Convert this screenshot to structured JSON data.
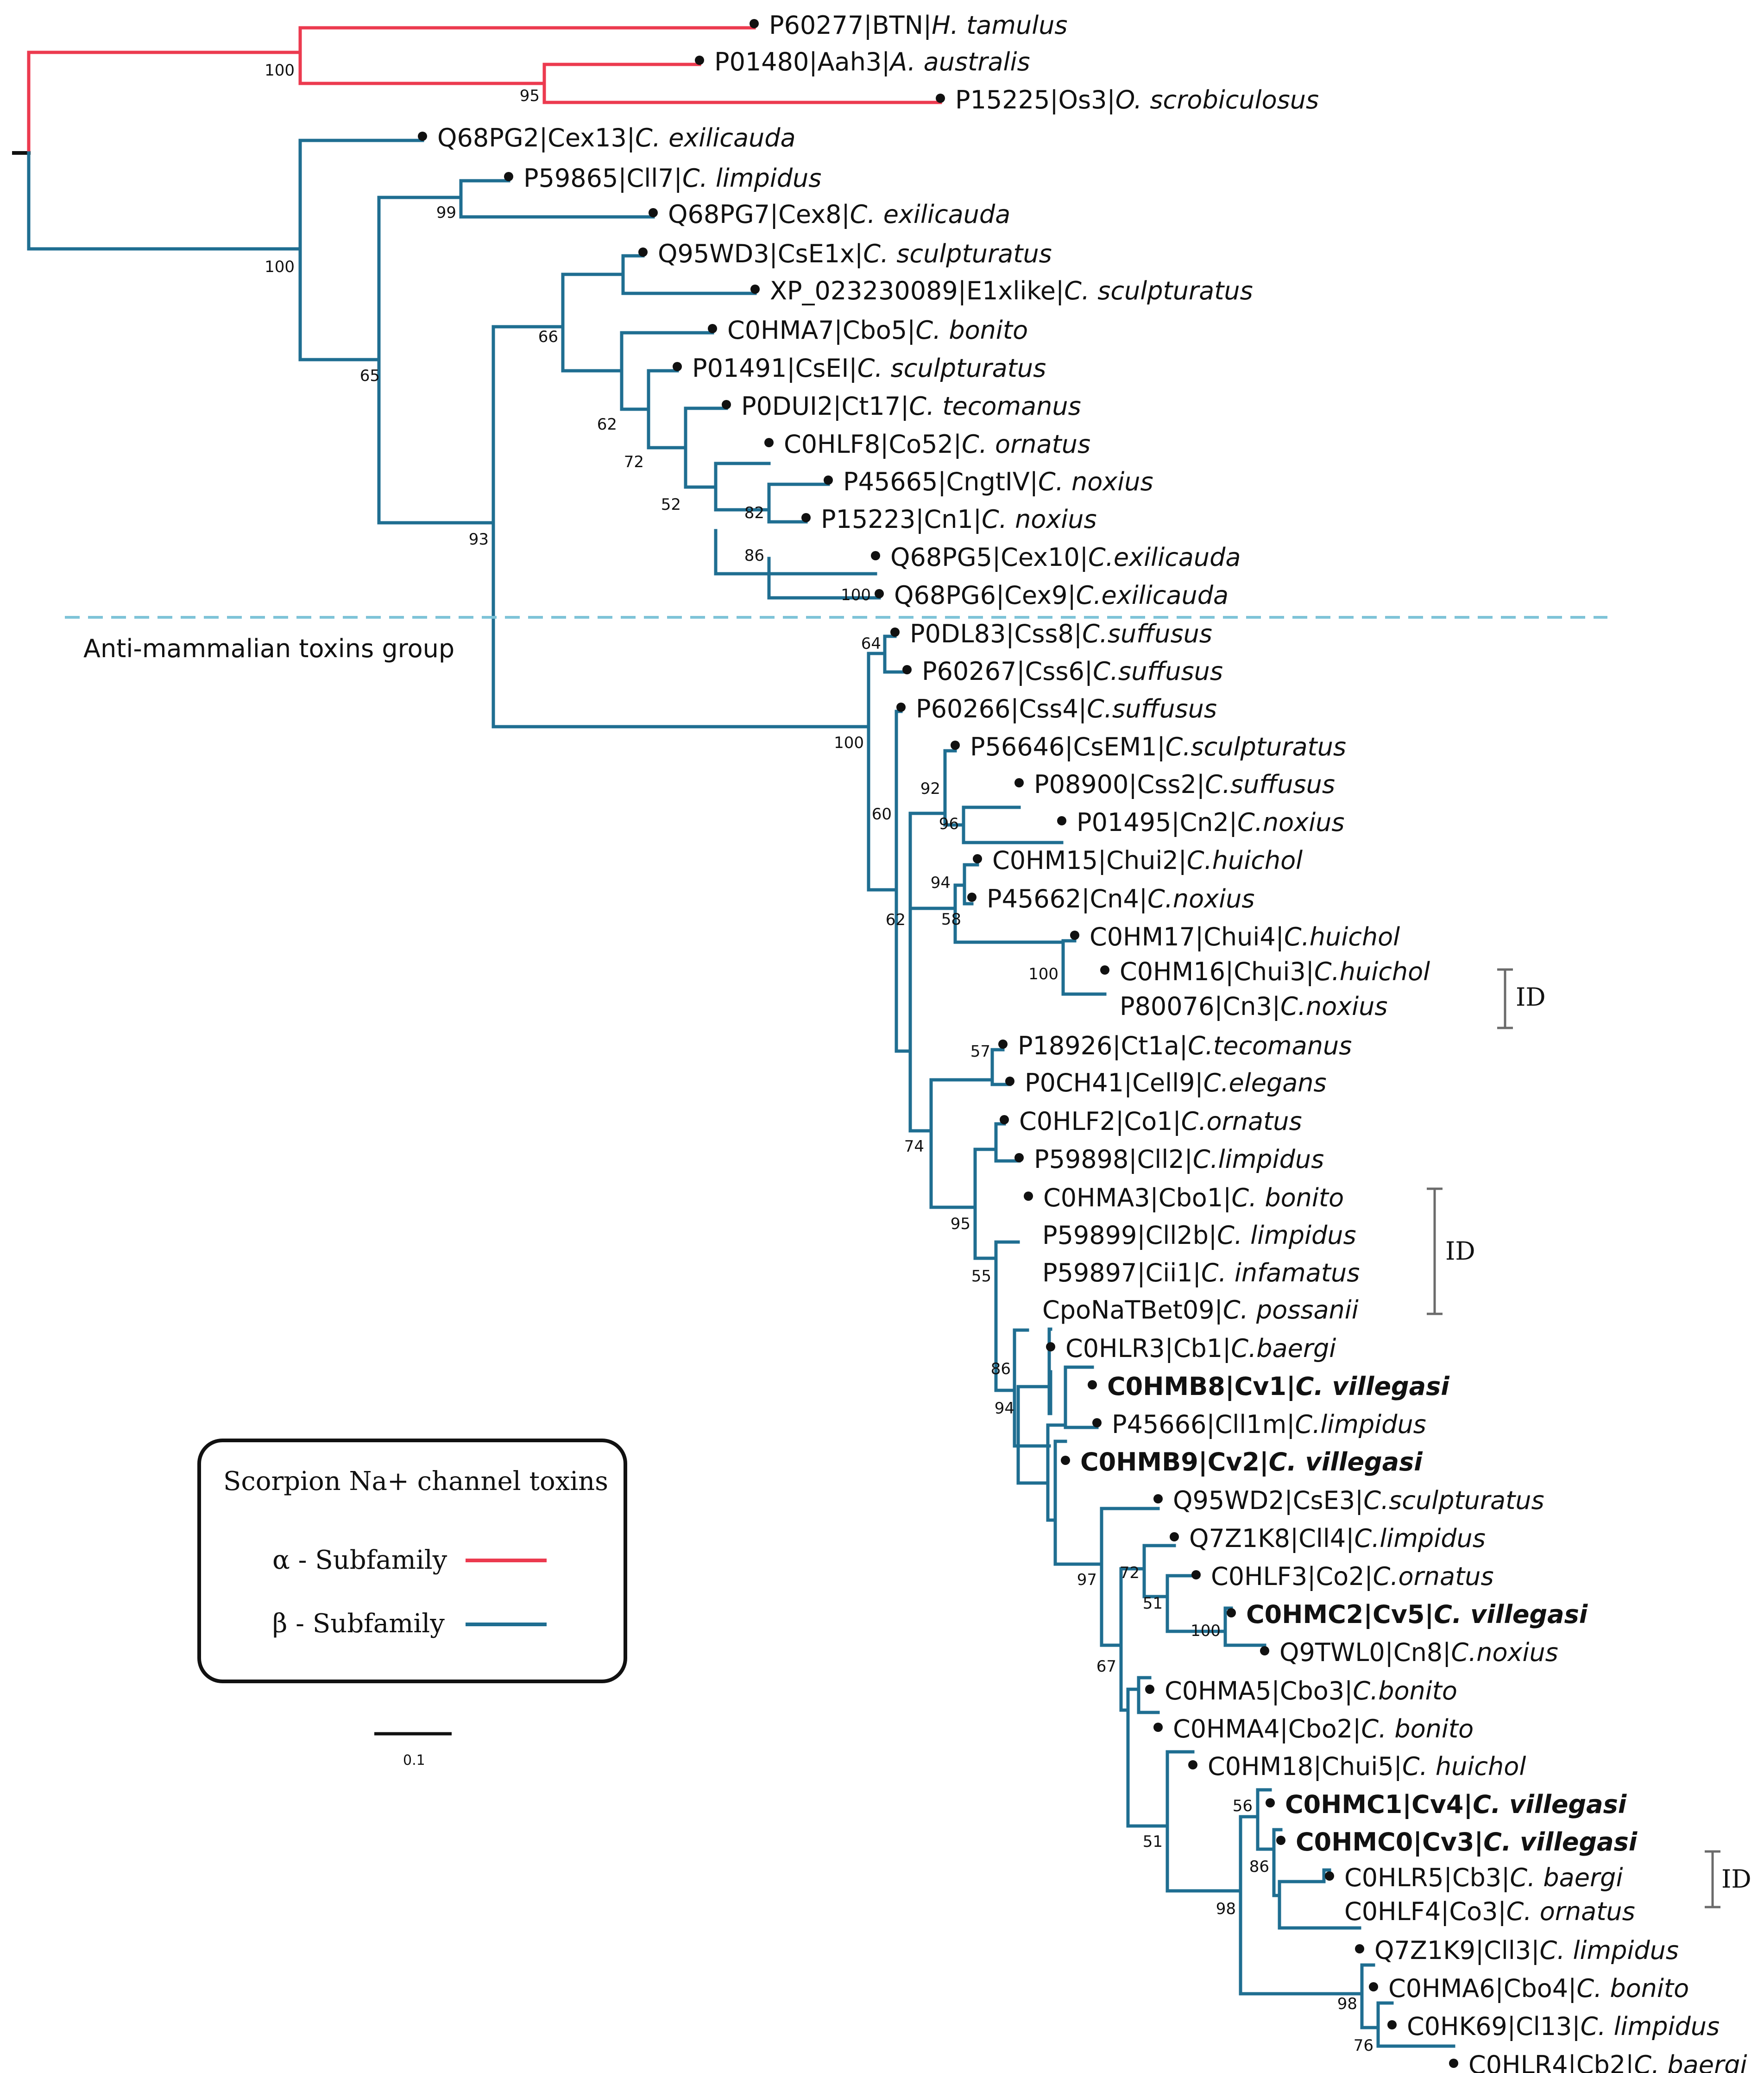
{
  "colors": {
    "alpha": "#ec3a4f",
    "beta": "#1f6e91",
    "divider": "#7ec3d8",
    "bracket": "#6b6b6b"
  },
  "tree": {
    "leaves": [
      {
        "acc": "P60277",
        "toxin": "BTN",
        "species": "H. tamulus"
      },
      {
        "acc": "P01480",
        "toxin": "Aah3",
        "species": "A. australis"
      },
      {
        "acc": "P15225",
        "toxin": "Os3",
        "species": "O. scrobiculosus"
      },
      {
        "acc": "Q68PG2",
        "toxin": "Cex13",
        "species": "C. exilicauda"
      },
      {
        "acc": "P59865",
        "toxin": "Cll7",
        "species": "C. limpidus"
      },
      {
        "acc": "Q68PG7",
        "toxin": "Cex8",
        "species": "C. exilicauda"
      },
      {
        "acc": "Q95WD3",
        "toxin": "CsE1x",
        "species": "C. sculpturatus"
      },
      {
        "acc": "XP_023230089",
        "toxin": "E1xlike",
        "species": "C. sculpturatus"
      },
      {
        "acc": "C0HMA7",
        "toxin": "Cbo5",
        "species": "C. bonito"
      },
      {
        "acc": "P01491",
        "toxin": "CsEI",
        "species": "C. sculpturatus"
      },
      {
        "acc": "P0DUI2",
        "toxin": "Ct17",
        "species": "C. tecomanus"
      },
      {
        "acc": "C0HLF8",
        "toxin": "Co52",
        "species": "C. ornatus"
      },
      {
        "acc": "P45665",
        "toxin": "CngtIV",
        "species": "C. noxius"
      },
      {
        "acc": "P15223",
        "toxin": "Cn1",
        "species": "C. noxius"
      },
      {
        "acc": "Q68PG5",
        "toxin": "Cex10",
        "species": "C.exilicauda"
      },
      {
        "acc": "Q68PG6",
        "toxin": "Cex9",
        "species": "C.exilicauda"
      },
      {
        "acc": "P0DL83",
        "toxin": "Css8",
        "species": "C.suffusus"
      },
      {
        "acc": "P60267",
        "toxin": "Css6",
        "species": "C.suffusus"
      },
      {
        "acc": "P60266",
        "toxin": "Css4",
        "species": "C.suffusus"
      },
      {
        "acc": "P56646",
        "toxin": "CsEM1",
        "species": "C.sculpturatus"
      },
      {
        "acc": "P08900",
        "toxin": "Css2",
        "species": "C.suffusus"
      },
      {
        "acc": "P01495",
        "toxin": "Cn2",
        "species": "C.noxius"
      },
      {
        "acc": "C0HM15",
        "toxin": "Chui2",
        "species": "C.huichol"
      },
      {
        "acc": "P45662",
        "toxin": "Cn4",
        "species": "C.noxius"
      },
      {
        "acc": "C0HM17",
        "toxin": "Chui4",
        "species": "C.huichol"
      },
      {
        "acc": "C0HM16",
        "toxin": "Chui3",
        "species": "C.huichol"
      },
      {
        "acc": "P80076",
        "toxin": "Cn3",
        "species": "C.noxius"
      },
      {
        "acc": "P18926",
        "toxin": "Ct1a",
        "species": "C.tecomanus"
      },
      {
        "acc": "P0CH41",
        "toxin": "Cell9",
        "species": "C.elegans"
      },
      {
        "acc": "C0HLF2",
        "toxin": "Co1",
        "species": "C.ornatus"
      },
      {
        "acc": "P59898",
        "toxin": "Cll2",
        "species": "C.limpidus"
      },
      {
        "acc": "C0HMA3",
        "toxin": "Cbo1",
        "species": "C. bonito"
      },
      {
        "acc": "P59899",
        "toxin": "Cll2b",
        "species": "C. limpidus"
      },
      {
        "acc": "P59897",
        "toxin": "Cii1",
        "species": "C. infamatus"
      },
      {
        "acc": "CpoNaTBet09",
        "toxin": "",
        "species": "C. possanii"
      },
      {
        "acc": "C0HLR3",
        "toxin": "Cb1",
        "species": "C.baergi"
      },
      {
        "acc": "C0HMB8",
        "toxin": "Cv1",
        "species": "C. villegasi"
      },
      {
        "acc": "P45666",
        "toxin": "Cll1m",
        "species": "C.limpidus"
      },
      {
        "acc": "C0HMB9",
        "toxin": "Cv2",
        "species": "C. villegasi"
      },
      {
        "acc": "Q95WD2",
        "toxin": "CsE3",
        "species": "C.sculpturatus"
      },
      {
        "acc": "Q7Z1K8",
        "toxin": "Cll4",
        "species": "C.limpidus"
      },
      {
        "acc": "C0HLF3",
        "toxin": "Co2",
        "species": "C.ornatus"
      },
      {
        "acc": "C0HMC2",
        "toxin": "Cv5",
        "species": "C. villegasi"
      },
      {
        "acc": "Q9TWL0",
        "toxin": "Cn8",
        "species": "C.noxius"
      },
      {
        "acc": "C0HMA5",
        "toxin": "Cbo3",
        "species": "C.bonito"
      },
      {
        "acc": "C0HMA4",
        "toxin": "Cbo2",
        "species": "C. bonito"
      },
      {
        "acc": "C0HM18",
        "toxin": "Chui5",
        "species": "C. huichol"
      },
      {
        "acc": "C0HMC1",
        "toxin": "Cv4",
        "species": "C. villegasi"
      },
      {
        "acc": "C0HMC0",
        "toxin": "Cv3",
        "species": "C. villegasi"
      },
      {
        "acc": "C0HLR5",
        "toxin": "Cb3",
        "species": "C. baergi"
      },
      {
        "acc": "C0HLF4",
        "toxin": "Co3",
        "species": "C. ornatus"
      },
      {
        "acc": "Q7Z1K9",
        "toxin": "Cll3",
        "species": "C. limpidus"
      },
      {
        "acc": "C0HMA6",
        "toxin": "Cbo4",
        "species": "C. bonito"
      },
      {
        "acc": "C0HK69",
        "toxin": "Cl13",
        "species": "C. limpidus"
      },
      {
        "acc": "C0HLR4",
        "toxin": "Cb2",
        "species": "C. baergi"
      }
    ],
    "support_values": [
      "100",
      "95",
      "100",
      "99",
      "65",
      "66",
      "62",
      "72",
      "52",
      "82",
      "86",
      "100",
      "93",
      "64",
      "100",
      "60",
      "92",
      "96",
      "62",
      "94",
      "58",
      "100",
      "74",
      "57",
      "95",
      "55",
      "86",
      "94",
      "97",
      "51",
      "100",
      "72",
      "67",
      "56",
      "86",
      "51",
      "98",
      "98",
      "76"
    ],
    "group_label": "Anti-mammalian toxins group",
    "id_marker": "ID",
    "scale_value": "0.1"
  },
  "legend": {
    "title": "Scorpion Na+ channel toxins",
    "items": [
      {
        "label": "α - Subfamily",
        "color": "#ec3a4f"
      },
      {
        "label": "β - Subfamily",
        "color": "#1f6e91"
      }
    ]
  }
}
